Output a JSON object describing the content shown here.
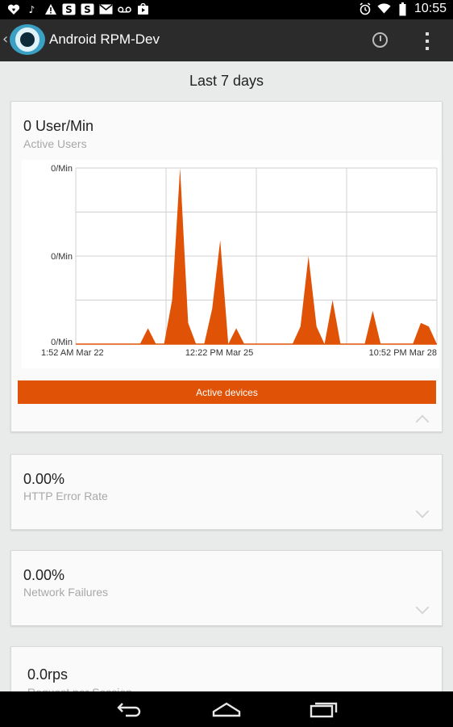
{
  "status_bar": {
    "left_icons": [
      "iheart-icon",
      "music-note-icon",
      "warning-icon",
      "s-app-icon",
      "s-app-icon",
      "gmail-icon",
      "voicemail-icon",
      "play-store-icon"
    ],
    "right_icons": [
      "alarm-icon",
      "wifi-icon",
      "battery-icon"
    ],
    "time": "10:55"
  },
  "action_bar": {
    "title": "Android RPM-Dev",
    "logo_icon": "app-logo-eye-icon",
    "actions": [
      "clock-icon",
      "overflow-menu-icon"
    ]
  },
  "period_label": "Last 7 days",
  "cards": [
    {
      "value": "0 User/Min",
      "label": "Active Users",
      "expanded": true,
      "legend_button": "Active devices"
    },
    {
      "value": "0.00%",
      "label": "HTTP Error Rate",
      "expanded": false
    },
    {
      "value": "0.00%",
      "label": "Network Failures",
      "expanded": false
    },
    {
      "value": "0.0rps",
      "label": "Request per Session",
      "expanded": false
    }
  ],
  "chart_data": {
    "type": "area",
    "y_tick_labels": [
      "0/Min",
      "0/Min",
      "0/Min"
    ],
    "x_tick_labels": [
      "1:52 AM Mar 22",
      "12:22 PM Mar 25",
      "10:52 PM Mar 28"
    ],
    "ylim": [
      0,
      1
    ],
    "x_count": 46,
    "points": [
      [
        0,
        0
      ],
      [
        8,
        0
      ],
      [
        9,
        0.09
      ],
      [
        10,
        0
      ],
      [
        11,
        0
      ],
      [
        12,
        0.25
      ],
      [
        13,
        1.0
      ],
      [
        14,
        0.12
      ],
      [
        15,
        0
      ],
      [
        16,
        0
      ],
      [
        17,
        0.2
      ],
      [
        18,
        0.59
      ],
      [
        19,
        0
      ],
      [
        20,
        0.09
      ],
      [
        21,
        0
      ],
      [
        27,
        0
      ],
      [
        28,
        0.1
      ],
      [
        29,
        0.5
      ],
      [
        30,
        0.1
      ],
      [
        31,
        0
      ],
      [
        32,
        0.25
      ],
      [
        33,
        0
      ],
      [
        36,
        0
      ],
      [
        37,
        0.19
      ],
      [
        38,
        0
      ],
      [
        42,
        0
      ],
      [
        43,
        0.12
      ],
      [
        44,
        0.1
      ],
      [
        45,
        0
      ]
    ],
    "color": "#e05206",
    "grid": true,
    "legend": "Active devices"
  },
  "nav_bar": {
    "buttons": [
      "back-icon",
      "home-icon",
      "recent-apps-icon"
    ]
  }
}
